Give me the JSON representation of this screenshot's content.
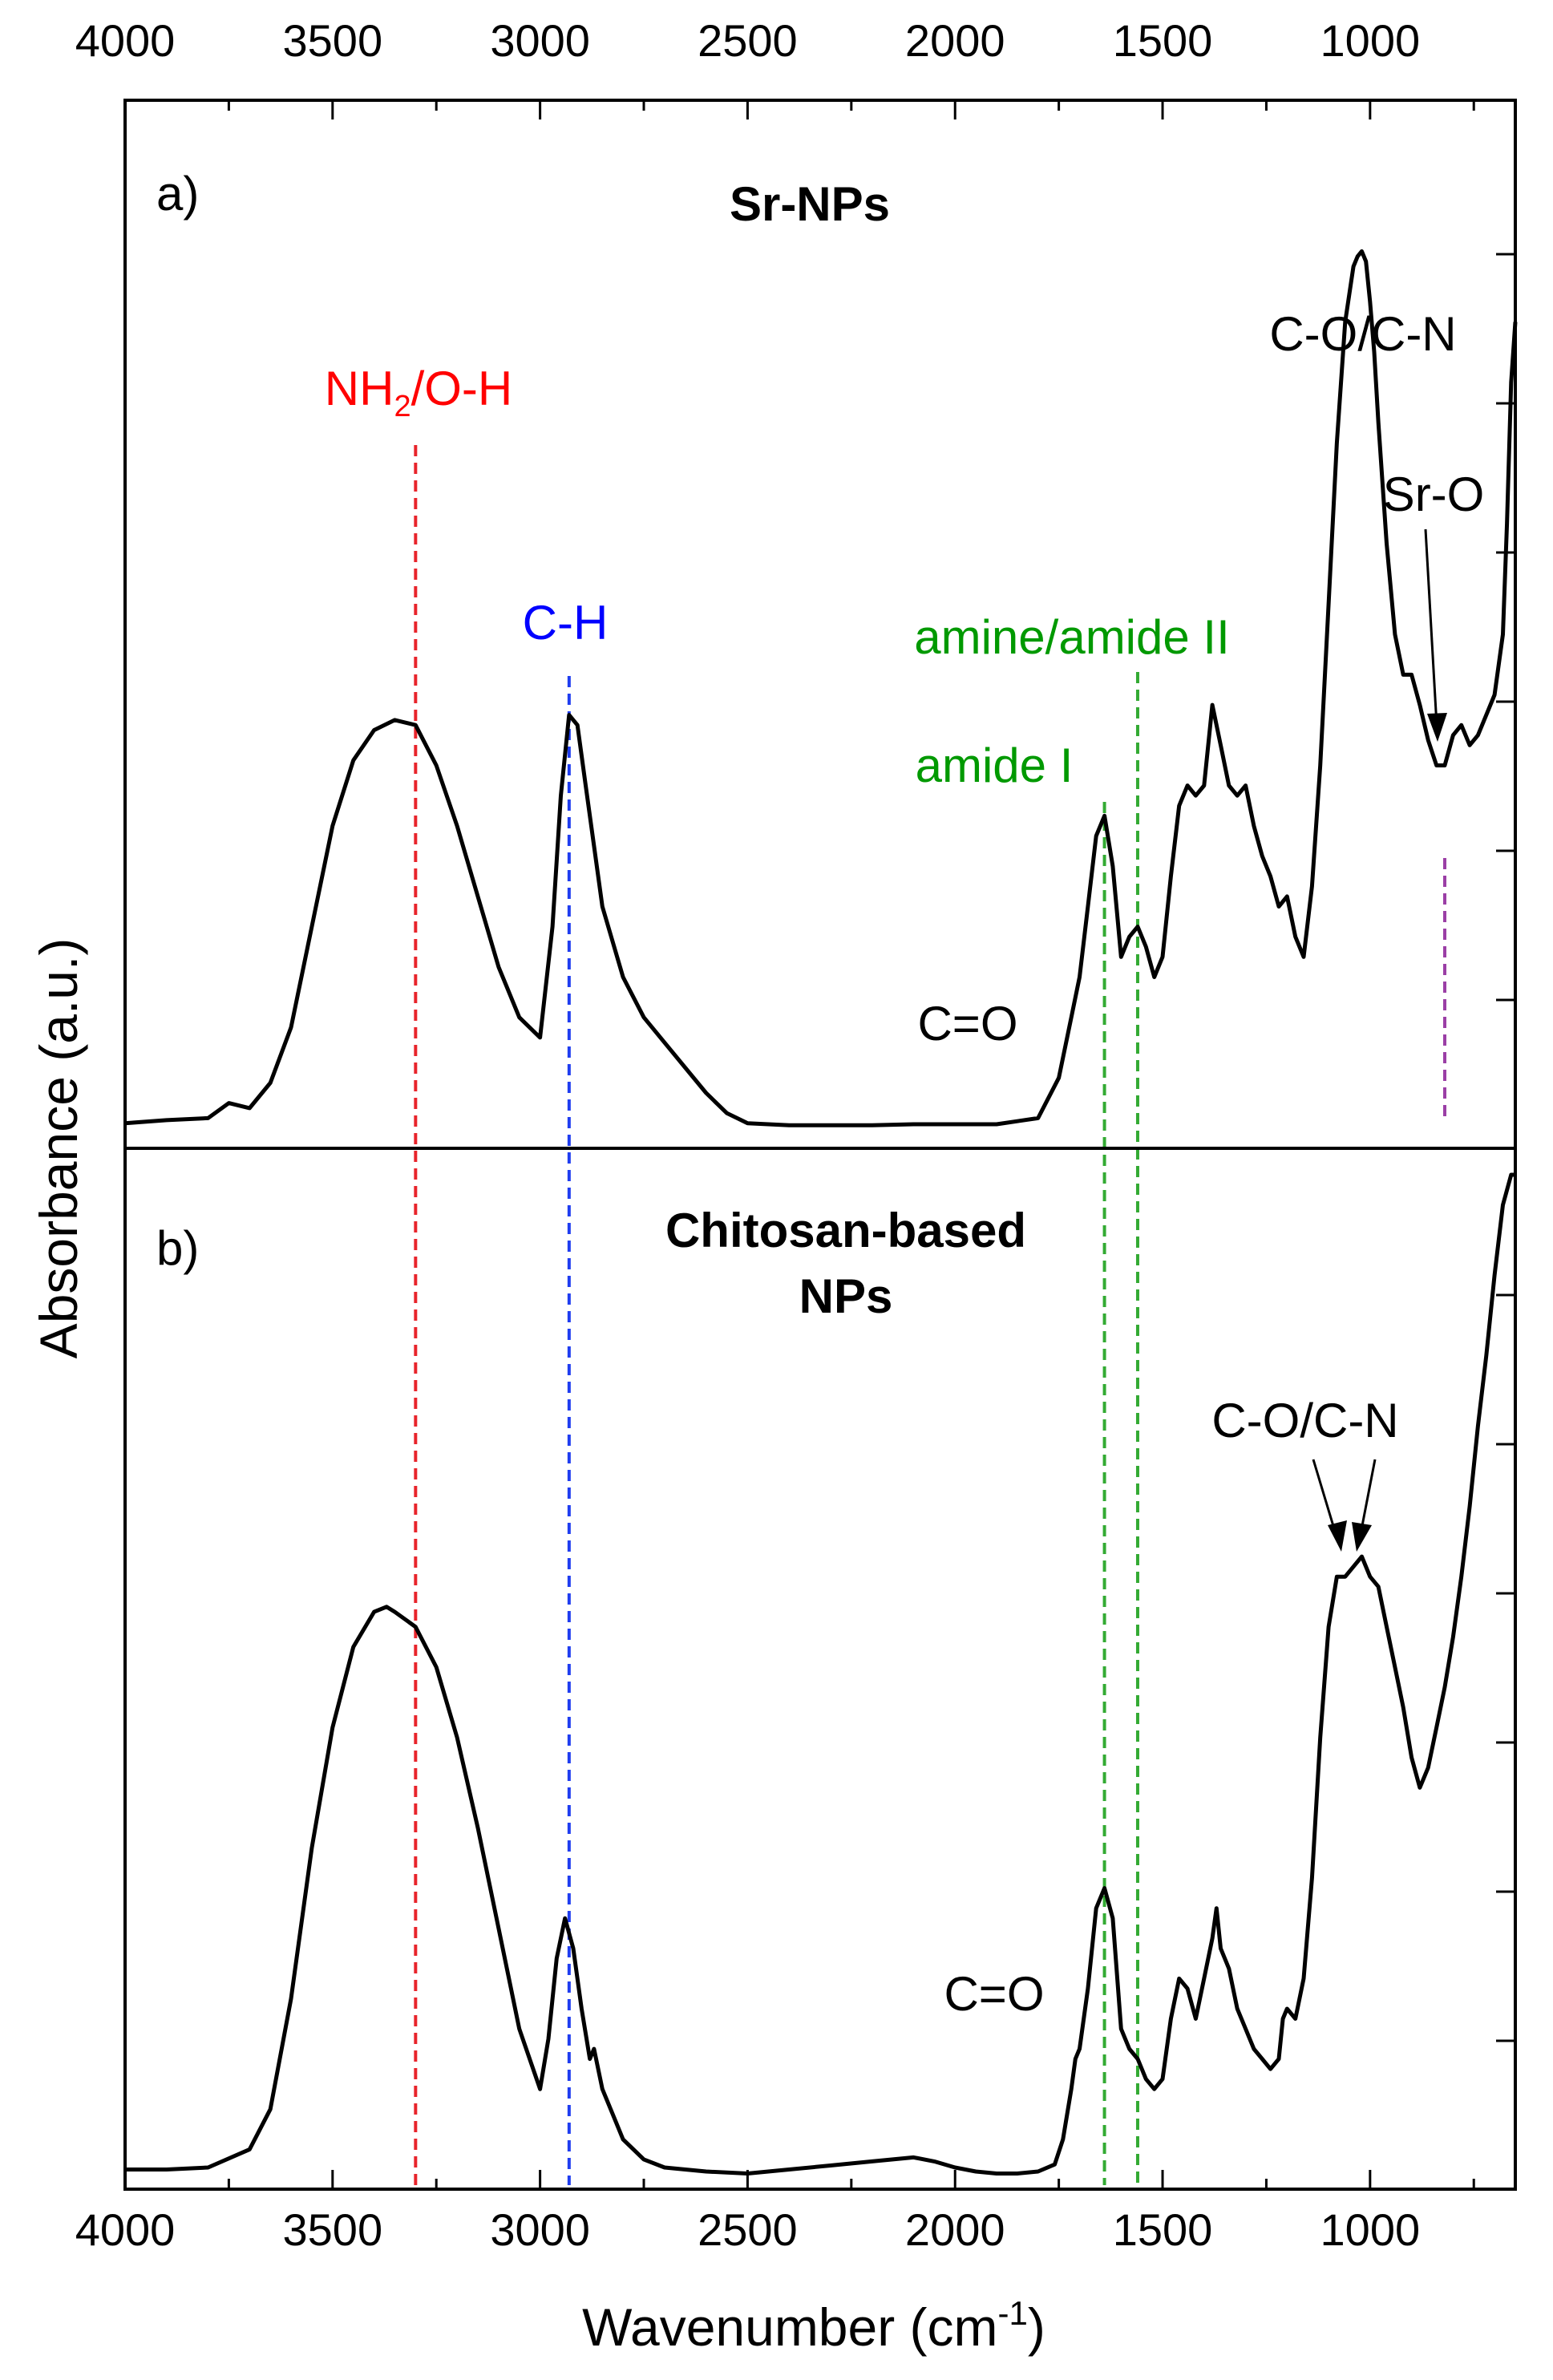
{
  "chart_data": {
    "type": "line",
    "xlabel": "Wavenumber (cm-1)",
    "xlabel_main": "Wavenumber (cm",
    "xlabel_sup": "-1",
    "xlabel_end": ")",
    "ylabel": "Absorbance (a.u.)",
    "x_reversed": true,
    "xlim": [
      4000,
      650
    ],
    "xticks": [
      "4000",
      "3500",
      "3000",
      "2500",
      "2000",
      "1500",
      "1000"
    ],
    "grid": false,
    "panels": [
      {
        "id": "a",
        "letter": "a)",
        "title": "Sr-NPs",
        "ylim": [
          0,
          1
        ],
        "series": [
          {
            "color": "#000000",
            "x": [
              4000,
              3900,
              3800,
              3750,
              3700,
              3650,
              3600,
              3550,
              3500,
              3450,
              3400,
              3350,
              3300,
              3250,
              3200,
              3150,
              3100,
              3050,
              3000,
              2970,
              2950,
              2930,
              2910,
              2890,
              2870,
              2850,
              2800,
              2750,
              2700,
              2650,
              2600,
              2550,
              2500,
              2450,
              2400,
              2300,
              2200,
              2100,
              2000,
              1900,
              1800,
              1750,
              1720,
              1700,
              1680,
              1660,
              1640,
              1620,
              1600,
              1580,
              1560,
              1540,
              1520,
              1500,
              1480,
              1460,
              1440,
              1420,
              1400,
              1380,
              1360,
              1340,
              1320,
              1300,
              1280,
              1260,
              1240,
              1220,
              1200,
              1180,
              1160,
              1140,
              1120,
              1100,
              1080,
              1060,
              1040,
              1030,
              1020,
              1010,
              1000,
              990,
              980,
              960,
              940,
              920,
              900,
              880,
              860,
              840,
              820,
              800,
              780,
              760,
              740,
              720,
              700,
              680,
              670,
              660,
              650
            ],
            "y": [
              0.005,
              0.008,
              0.01,
              0.025,
              0.02,
              0.045,
              0.1,
              0.2,
              0.3,
              0.365,
              0.395,
              0.405,
              0.4,
              0.36,
              0.3,
              0.23,
              0.16,
              0.11,
              0.09,
              0.2,
              0.33,
              0.41,
              0.4,
              0.34,
              0.28,
              0.22,
              0.15,
              0.11,
              0.085,
              0.06,
              0.035,
              0.015,
              0.005,
              0.004,
              0.003,
              0.003,
              0.003,
              0.004,
              0.004,
              0.004,
              0.01,
              0.05,
              0.11,
              0.15,
              0.22,
              0.29,
              0.31,
              0.26,
              0.17,
              0.19,
              0.2,
              0.18,
              0.15,
              0.17,
              0.25,
              0.32,
              0.34,
              0.33,
              0.34,
              0.42,
              0.38,
              0.34,
              0.33,
              0.34,
              0.3,
              0.27,
              0.25,
              0.22,
              0.23,
              0.19,
              0.17,
              0.24,
              0.36,
              0.52,
              0.68,
              0.8,
              0.855,
              0.865,
              0.87,
              0.86,
              0.82,
              0.77,
              0.7,
              0.58,
              0.49,
              0.45,
              0.45,
              0.42,
              0.385,
              0.36,
              0.36,
              0.39,
              0.4,
              0.38,
              0.39,
              0.41,
              0.43,
              0.49,
              0.6,
              0.74,
              0.8
            ]
          }
        ],
        "annotations": [
          {
            "text": "NH2/O-H",
            "main": "NH",
            "sub": "2",
            "rest": "/O-H",
            "color": "#ff0000",
            "x": 3300
          },
          {
            "text": "C-H",
            "color": "#0000ff",
            "x": 2930
          },
          {
            "text": "amine/amide II",
            "color": "#009900",
            "x": 1560
          },
          {
            "text": "amide I",
            "color": "#009900",
            "x": 1640
          },
          {
            "text": "C=O",
            "color": "#000000",
            "x": 1760
          },
          {
            "text": "C-O/C-N",
            "color": "#000000",
            "x": 1030
          },
          {
            "text": "Sr-O",
            "color": "#000000",
            "x": 820
          }
        ]
      },
      {
        "id": "b",
        "letter": "b)",
        "title_line1": "Chitosan-based",
        "title_line2": "NPs",
        "ylim": [
          0,
          1
        ],
        "series": [
          {
            "color": "#000000",
            "x": [
              4000,
              3900,
              3800,
              3700,
              3650,
              3600,
              3550,
              3500,
              3450,
              3400,
              3370,
              3350,
              3300,
              3250,
              3200,
              3150,
              3100,
              3050,
              3000,
              2980,
              2960,
              2940,
              2920,
              2900,
              2880,
              2870,
              2850,
              2820,
              2800,
              2750,
              2700,
              2600,
              2500,
              2400,
              2300,
              2200,
              2150,
              2100,
              2050,
              2000,
              1950,
              1900,
              1850,
              1800,
              1760,
              1740,
              1720,
              1710,
              1700,
              1690,
              1680,
              1660,
              1640,
              1620,
              1600,
              1580,
              1560,
              1540,
              1520,
              1500,
              1480,
              1460,
              1440,
              1420,
              1400,
              1380,
              1370,
              1360,
              1340,
              1320,
              1300,
              1280,
              1260,
              1240,
              1220,
              1210,
              1200,
              1180,
              1160,
              1140,
              1120,
              1100,
              1080,
              1060,
              1040,
              1020,
              1000,
              980,
              960,
              940,
              920,
              900,
              880,
              860,
              840,
              820,
              800,
              780,
              760,
              740,
              720,
              700,
              680,
              660,
              650
            ],
            "y": [
              0.01,
              0.01,
              0.012,
              0.03,
              0.07,
              0.18,
              0.33,
              0.45,
              0.53,
              0.565,
              0.57,
              0.565,
              0.55,
              0.51,
              0.44,
              0.35,
              0.25,
              0.15,
              0.09,
              0.14,
              0.22,
              0.26,
              0.23,
              0.17,
              0.12,
              0.13,
              0.09,
              0.06,
              0.04,
              0.02,
              0.012,
              0.008,
              0.006,
              0.01,
              0.014,
              0.018,
              0.02,
              0.022,
              0.018,
              0.012,
              0.008,
              0.006,
              0.006,
              0.008,
              0.015,
              0.04,
              0.09,
              0.12,
              0.13,
              0.16,
              0.19,
              0.27,
              0.29,
              0.26,
              0.15,
              0.13,
              0.12,
              0.1,
              0.09,
              0.1,
              0.16,
              0.2,
              0.19,
              0.16,
              0.2,
              0.24,
              0.27,
              0.23,
              0.21,
              0.17,
              0.15,
              0.13,
              0.12,
              0.11,
              0.12,
              0.16,
              0.17,
              0.16,
              0.2,
              0.3,
              0.44,
              0.55,
              0.6,
              0.6,
              0.61,
              0.62,
              0.6,
              0.59,
              0.55,
              0.51,
              0.47,
              0.42,
              0.39,
              0.41,
              0.45,
              0.49,
              0.54,
              0.6,
              0.67,
              0.75,
              0.82,
              0.9,
              0.97,
              1.0,
              1.0
            ]
          }
        ],
        "annotations": [
          {
            "text": "C=O",
            "color": "#000000",
            "x": 1760
          },
          {
            "text": "C-O/C-N",
            "color": "#000000",
            "x": 1040
          }
        ]
      }
    ],
    "guide_lines": [
      {
        "x": 3300,
        "color": "#e8242b",
        "span": "both"
      },
      {
        "x": 2930,
        "color": "#1f3df0",
        "span": "both"
      },
      {
        "x": 1640,
        "color": "#33aa33",
        "span": "both"
      },
      {
        "x": 1560,
        "color": "#33aa33",
        "span": "both"
      },
      {
        "x": 820,
        "color": "#9b3fa6",
        "span": "a"
      }
    ]
  }
}
